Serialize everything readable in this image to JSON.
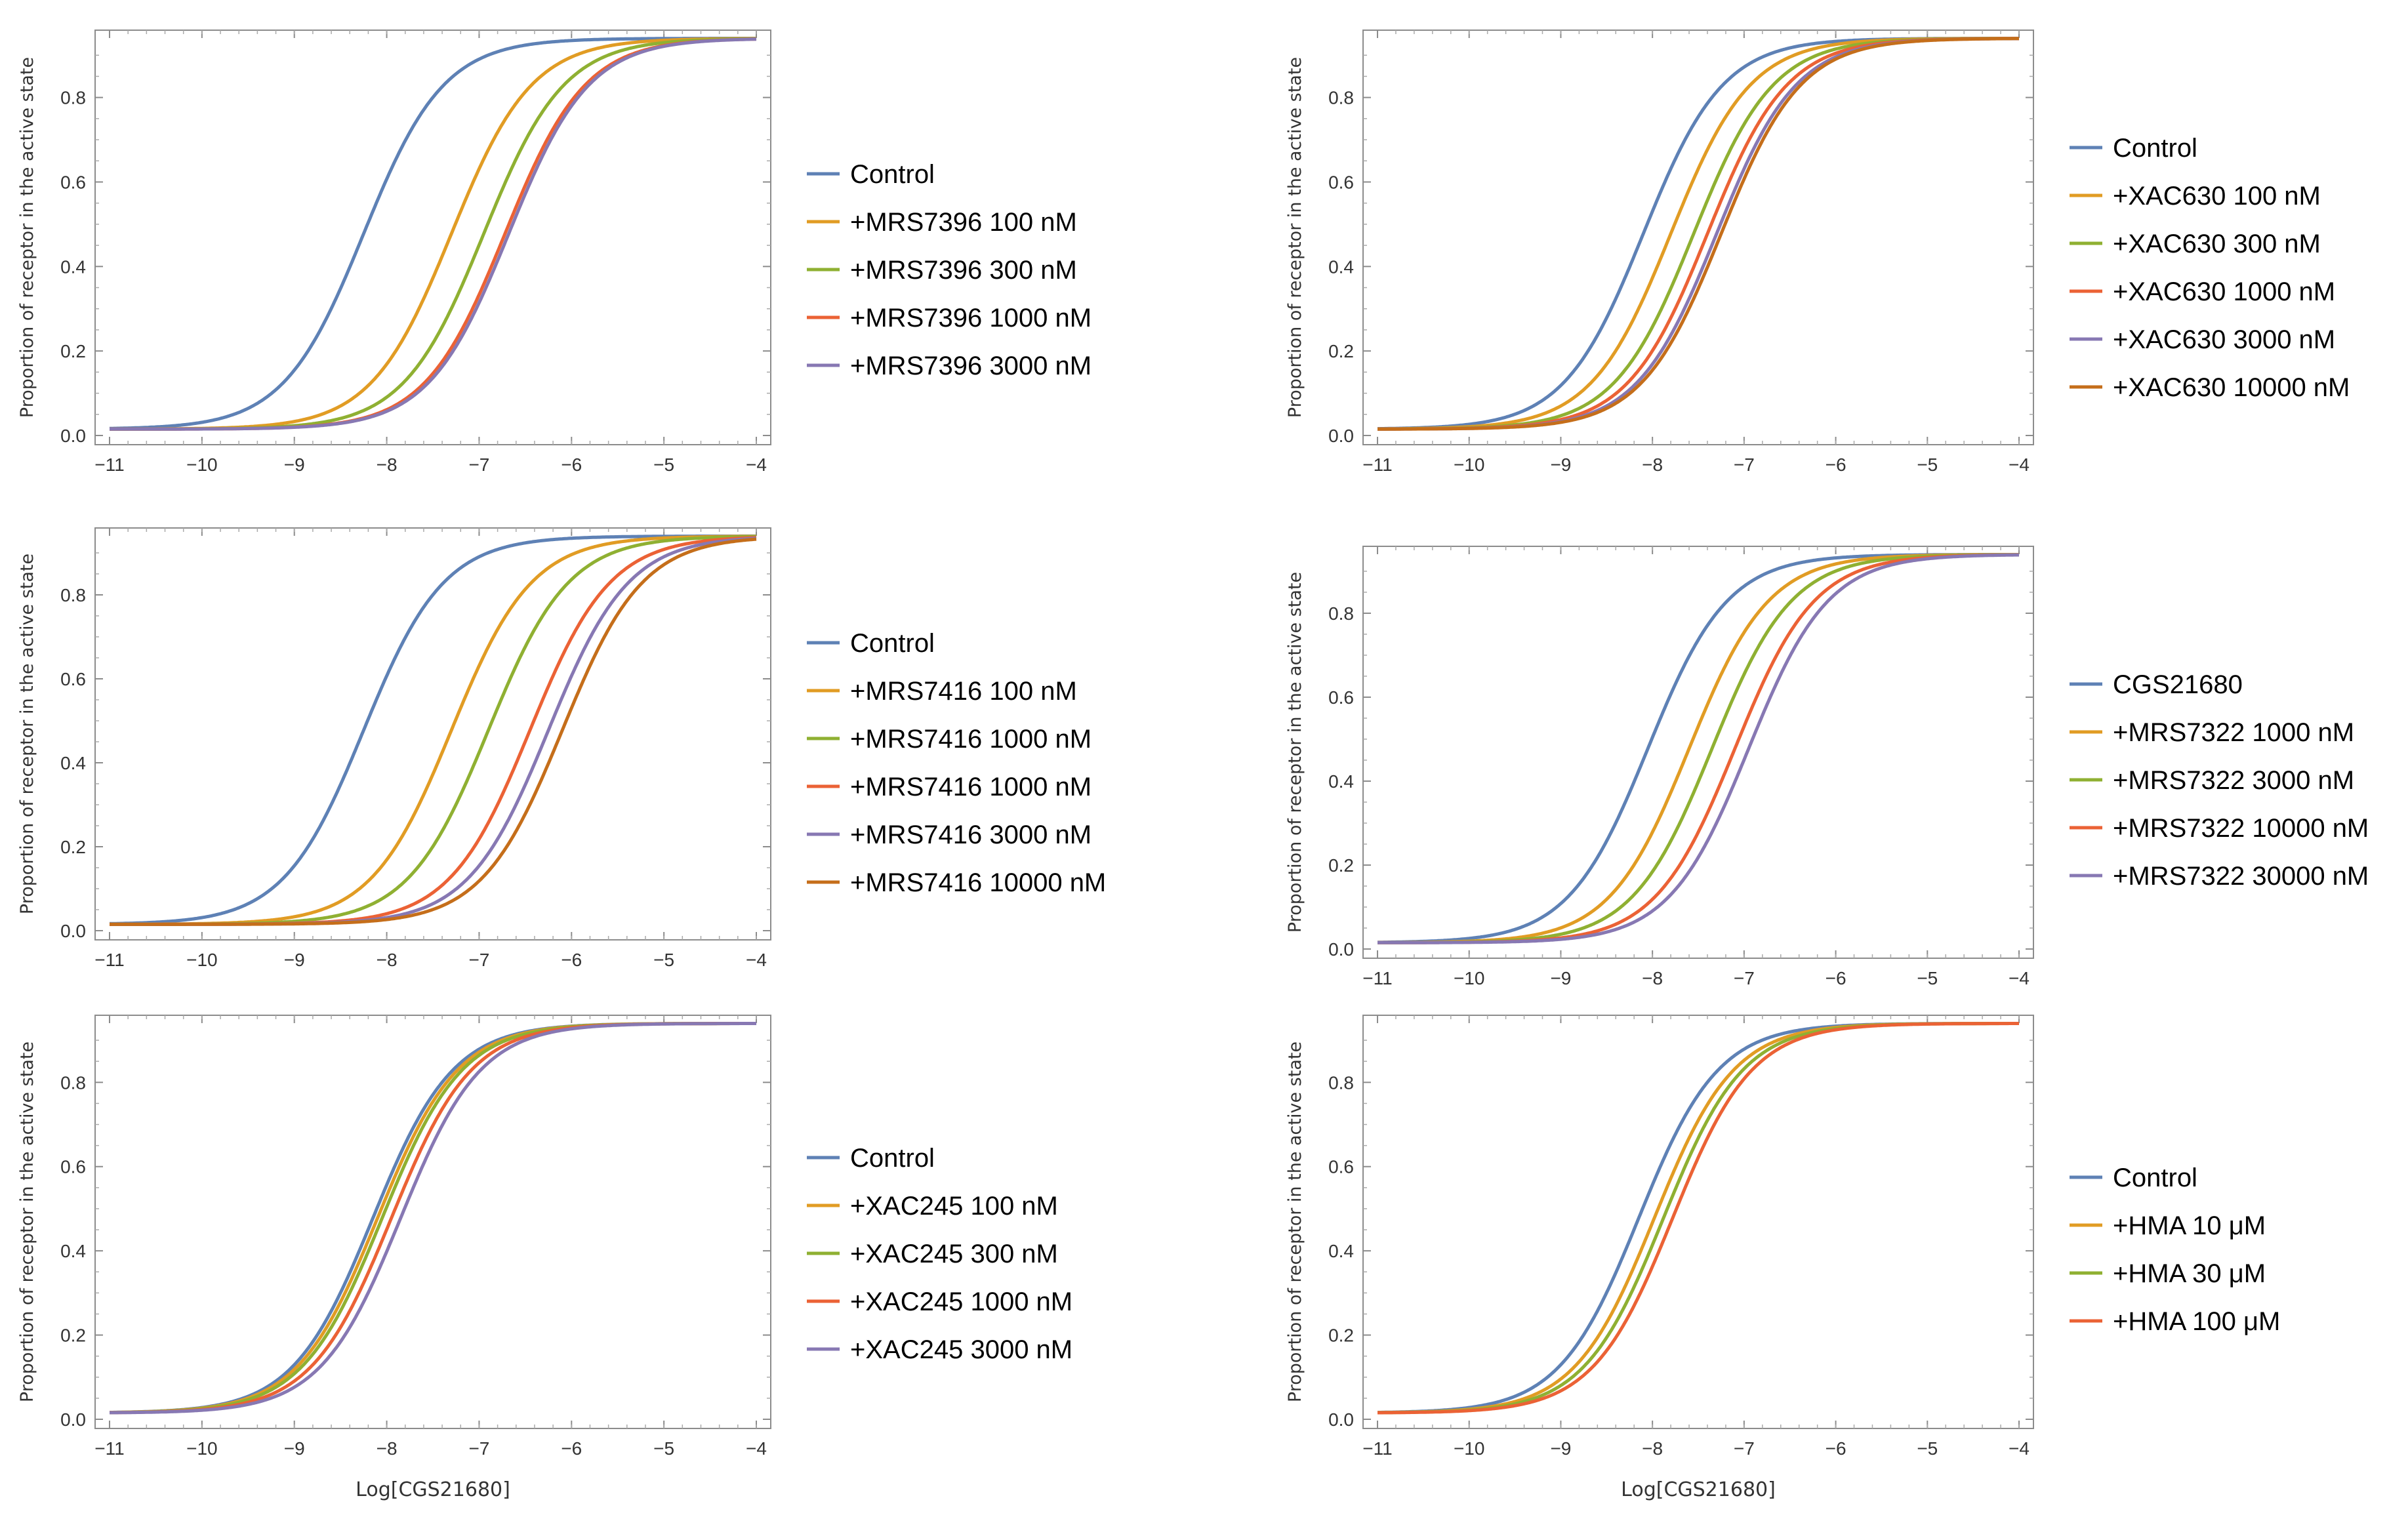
{
  "figure": {
    "y_axis_title": "Proportion  of  receptor  in the active  state",
    "x_axis_title": "Log[CGS21680]"
  },
  "colors": {
    "blue": "#5e81b5",
    "orange": "#e19c24",
    "green": "#8fb032",
    "red": "#eb6235",
    "purple": "#8778b3",
    "darkorange": "#c56e1a"
  },
  "chart_data": [
    {
      "id": "A",
      "type": "line",
      "show_xlabel": false,
      "x_range": [
        -11,
        -4
      ],
      "y_range": [
        0,
        0.95
      ],
      "x_ticks": [
        "-11",
        "-10",
        "-9",
        "-8",
        "-7",
        "-6",
        "-5",
        "-4"
      ],
      "y_ticks": [
        "0.0",
        "0.2",
        "0.4",
        "0.6",
        "0.8"
      ],
      "curve": {
        "bottom": 0.015,
        "top": 0.94,
        "hill": 1
      },
      "series": [
        {
          "name": "Control",
          "color": "#5e81b5",
          "log_ec50": -8.25
        },
        {
          "name": "+MRS7396 100 nM",
          "color": "#e19c24",
          "log_ec50": -7.3
        },
        {
          "name": "+MRS7396 300 nM",
          "color": "#8fb032",
          "log_ec50": -6.95
        },
        {
          "name": "+MRS7396 1000 nM",
          "color": "#eb6235",
          "log_ec50": -6.72
        },
        {
          "name": "+MRS7396 3000 nM",
          "color": "#8778b3",
          "log_ec50": -6.68
        }
      ]
    },
    {
      "id": "B",
      "type": "line",
      "show_xlabel": false,
      "x_range": [
        -11,
        -4
      ],
      "y_range": [
        0,
        0.95
      ],
      "x_ticks": [
        "-11",
        "-10",
        "-9",
        "-8",
        "-7",
        "-6",
        "-5",
        "-4"
      ],
      "y_ticks": [
        "0.0",
        "0.2",
        "0.4",
        "0.6",
        "0.8"
      ],
      "curve": {
        "bottom": 0.015,
        "top": 0.94,
        "hill": 1
      },
      "series": [
        {
          "name": "Control",
          "color": "#5e81b5",
          "log_ec50": -8.1
        },
        {
          "name": "+XAC630 100 nM",
          "color": "#e19c24",
          "log_ec50": -7.8
        },
        {
          "name": "+XAC630 300 nM",
          "color": "#8fb032",
          "log_ec50": -7.55
        },
        {
          "name": "+XAC630 1000 nM",
          "color": "#eb6235",
          "log_ec50": -7.4
        },
        {
          "name": "+XAC630 3000 nM",
          "color": "#8778b3",
          "log_ec50": -7.3
        },
        {
          "name": "+XAC630 10000 nM",
          "color": "#c56e1a",
          "log_ec50": -7.25
        }
      ]
    },
    {
      "id": "C",
      "type": "line",
      "show_xlabel": false,
      "x_range": [
        -11,
        -4
      ],
      "y_range": [
        0,
        0.95
      ],
      "x_ticks": [
        "-11",
        "-10",
        "-9",
        "-8",
        "-7",
        "-6",
        "-5",
        "-4"
      ],
      "y_ticks": [
        "0.0",
        "0.2",
        "0.4",
        "0.6",
        "0.8"
      ],
      "curve": {
        "bottom": 0.015,
        "top": 0.94,
        "hill": 1
      },
      "series": [
        {
          "name": "Control",
          "color": "#5e81b5",
          "log_ec50": -8.25
        },
        {
          "name": "+MRS7416 100 nM",
          "color": "#e19c24",
          "log_ec50": -7.3
        },
        {
          "name": "+MRS7416 1000 nM",
          "color": "#8fb032",
          "log_ec50": -6.9
        },
        {
          "name": "+MRS7416 1000 nM",
          "color": "#eb6235",
          "log_ec50": -6.45
        },
        {
          "name": "+MRS7416 3000 nM",
          "color": "#8778b3",
          "log_ec50": -6.25
        },
        {
          "name": "+MRS7416 10000 nM",
          "color": "#c56e1a",
          "log_ec50": -6.1
        }
      ]
    },
    {
      "id": "D",
      "type": "line",
      "show_xlabel": false,
      "x_range": [
        -11,
        -4
      ],
      "y_range": [
        0,
        0.95
      ],
      "x_ticks": [
        "-11",
        "-10",
        "-9",
        "-8",
        "-7",
        "-6",
        "-5",
        "-4"
      ],
      "y_ticks": [
        "0.0",
        "0.2",
        "0.4",
        "0.6",
        "0.8"
      ],
      "curve": {
        "bottom": 0.015,
        "top": 0.94,
        "hill": 1
      },
      "series": [
        {
          "name": "CGS21680",
          "color": "#5e81b5",
          "log_ec50": -8.05
        },
        {
          "name": "+MRS7322 1000 nM",
          "color": "#e19c24",
          "log_ec50": -7.6
        },
        {
          "name": "+MRS7322 3000 nM",
          "color": "#8fb032",
          "log_ec50": -7.35
        },
        {
          "name": "+MRS7322 10000 nM",
          "color": "#eb6235",
          "log_ec50": -7.1
        },
        {
          "name": "+MRS7322 30000 nM",
          "color": "#8778b3",
          "log_ec50": -6.95
        }
      ]
    },
    {
      "id": "E",
      "type": "line",
      "show_xlabel": true,
      "x_range": [
        -11,
        -4
      ],
      "y_range": [
        0,
        0.95
      ],
      "x_ticks": [
        "-11",
        "-10",
        "-9",
        "-8",
        "-7",
        "-6",
        "-5",
        "-4"
      ],
      "y_ticks": [
        "0.0",
        "0.2",
        "0.4",
        "0.6",
        "0.8"
      ],
      "curve": {
        "bottom": 0.015,
        "top": 0.94,
        "hill": 1
      },
      "series": [
        {
          "name": "Control",
          "color": "#5e81b5",
          "log_ec50": -8.15
        },
        {
          "name": "+XAC245 100 nM",
          "color": "#e19c24",
          "log_ec50": -8.1
        },
        {
          "name": "+XAC245 300 nM",
          "color": "#8fb032",
          "log_ec50": -8.05
        },
        {
          "name": "+XAC245 1000 nM",
          "color": "#eb6235",
          "log_ec50": -7.95
        },
        {
          "name": "+XAC245 3000 nM",
          "color": "#8778b3",
          "log_ec50": -7.85
        }
      ]
    },
    {
      "id": "F",
      "type": "line",
      "show_xlabel": true,
      "x_range": [
        -11,
        -4
      ],
      "y_range": [
        0,
        0.95
      ],
      "x_ticks": [
        "-11",
        "-10",
        "-9",
        "-8",
        "-7",
        "-6",
        "-5",
        "-4"
      ],
      "y_ticks": [
        "0.0",
        "0.2",
        "0.4",
        "0.6",
        "0.8"
      ],
      "curve": {
        "bottom": 0.015,
        "top": 0.94,
        "hill": 1
      },
      "series": [
        {
          "name": "Control",
          "color": "#5e81b5",
          "log_ec50": -8.15
        },
        {
          "name": "+HMA  10 μM",
          "color": "#e19c24",
          "log_ec50": -7.98
        },
        {
          "name": "+HMA  30 μM",
          "color": "#8fb032",
          "log_ec50": -7.88
        },
        {
          "name": "+HMA  100 μM",
          "color": "#eb6235",
          "log_ec50": -7.78
        }
      ]
    }
  ]
}
